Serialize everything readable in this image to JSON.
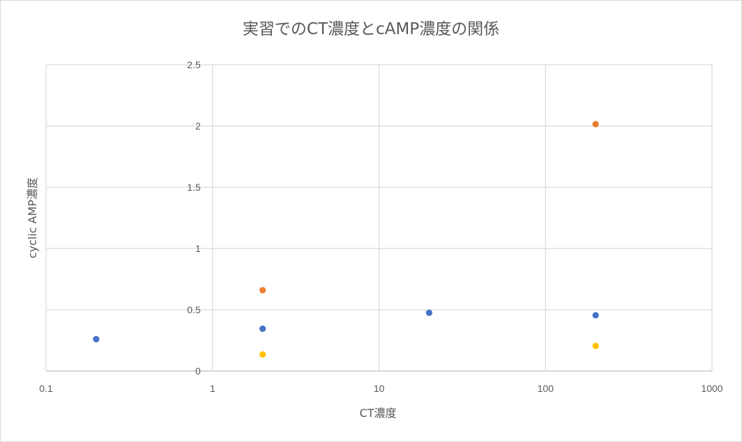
{
  "chart_data": {
    "type": "scatter",
    "title": "実習でのCT濃度とcAMP濃度の関係",
    "xlabel": "CT濃度",
    "ylabel": "cyclic AMP濃度",
    "x_scale": "log",
    "xlim": [
      0.1,
      1000
    ],
    "ylim": [
      0,
      2.5
    ],
    "x_ticks": [
      "0.1",
      "1",
      "10",
      "100",
      "1000"
    ],
    "y_ticks": [
      "0",
      "0.5",
      "1",
      "1.5",
      "2",
      "2.5"
    ],
    "grid": true,
    "legend": "none",
    "series": [
      {
        "color": "#4472c4",
        "points": [
          {
            "x": 0.2,
            "y": 0.26
          },
          {
            "x": 2,
            "y": 0.345
          },
          {
            "x": 20,
            "y": 0.475
          },
          {
            "x": 200,
            "y": 0.455
          }
        ]
      },
      {
        "color": "#ed7d31",
        "points": [
          {
            "x": 2,
            "y": 0.66
          },
          {
            "x": 200,
            "y": 2.015
          }
        ]
      },
      {
        "color": "#ffc000",
        "points": [
          {
            "x": 2,
            "y": 0.135
          },
          {
            "x": 200,
            "y": 0.205
          }
        ]
      }
    ]
  }
}
